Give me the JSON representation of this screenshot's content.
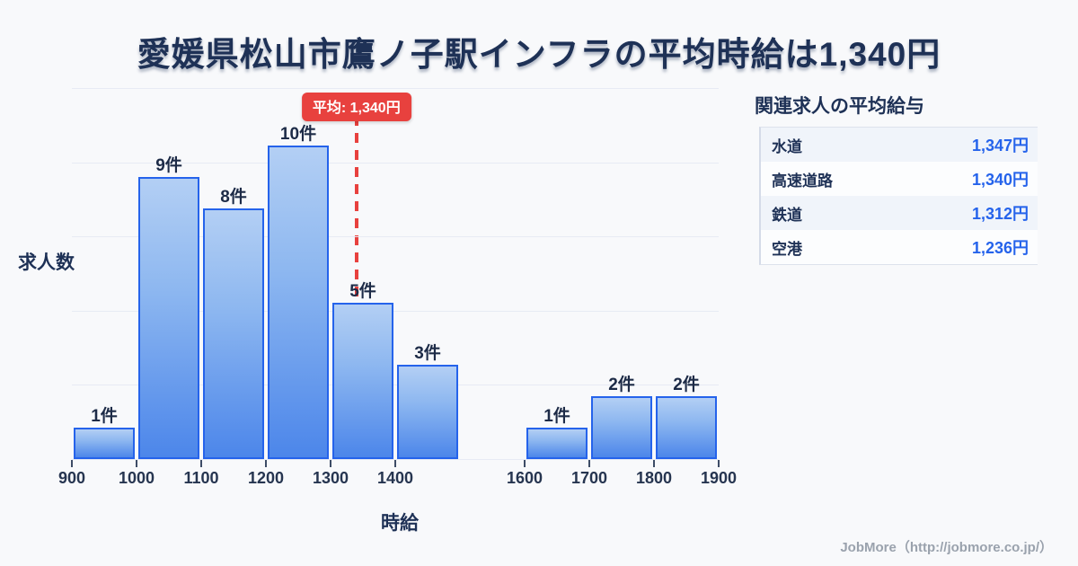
{
  "title": "愛媛県松山市鷹ノ子駅インフラの平均時給は1,340円",
  "chart_data": {
    "type": "bar",
    "title": "愛媛県松山市鷹ノ子駅インフラの平均時給は1,340円",
    "xlabel": "時給",
    "ylabel": "求人数",
    "xlim": [
      900,
      1900
    ],
    "ylim": [
      0,
      12
    ],
    "grid": true,
    "bins": [
      {
        "x0": 900,
        "x1": 1000,
        "count": 1,
        "label": "1件"
      },
      {
        "x0": 1000,
        "x1": 1100,
        "count": 9,
        "label": "9件"
      },
      {
        "x0": 1100,
        "x1": 1200,
        "count": 8,
        "label": "8件"
      },
      {
        "x0": 1200,
        "x1": 1300,
        "count": 10,
        "label": "10件"
      },
      {
        "x0": 1300,
        "x1": 1400,
        "count": 5,
        "label": "5件"
      },
      {
        "x0": 1400,
        "x1": 1500,
        "count": 3,
        "label": "3件"
      },
      {
        "x0": 1600,
        "x1": 1700,
        "count": 1,
        "label": "1件"
      },
      {
        "x0": 1700,
        "x1": 1800,
        "count": 2,
        "label": "2件"
      },
      {
        "x0": 1800,
        "x1": 1900,
        "count": 2,
        "label": "2件"
      }
    ],
    "x_ticks": [
      900,
      1000,
      1100,
      1200,
      1300,
      1400,
      1600,
      1700,
      1800,
      1900
    ],
    "average": {
      "value": 1340,
      "label": "平均: 1,340円"
    }
  },
  "axis": {
    "ylabel": "求人数",
    "xlabel": "時給"
  },
  "side_panel": {
    "heading": "関連求人の平均給与",
    "rows": [
      {
        "label": "水道",
        "value": "1,347円"
      },
      {
        "label": "高速道路",
        "value": "1,340円"
      },
      {
        "label": "鉄道",
        "value": "1,312円"
      },
      {
        "label": "空港",
        "value": "1,236円"
      }
    ]
  },
  "footer": {
    "credit": "JobMore（http://jobmore.co.jp/）"
  },
  "colors": {
    "background": "#f8f9fb",
    "title_text": "#1e3156",
    "bar_border": "#2563eb",
    "bar_fill_top": "#b3cff4",
    "bar_fill_bottom": "#4c86ea",
    "average_red": "#e8413e",
    "value_blue": "#2563eb",
    "gridline": "#e7ebf4",
    "footer_gray": "#9aa2ad"
  }
}
